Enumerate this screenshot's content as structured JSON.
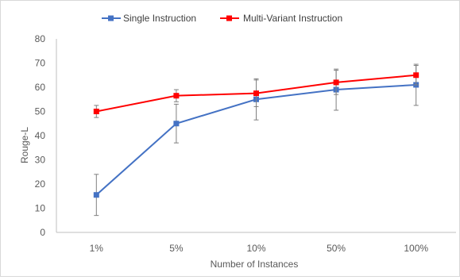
{
  "chart_data": {
    "type": "line",
    "title": "",
    "xlabel": "Number of Instances",
    "ylabel": "Rouge-L",
    "categories": [
      "1%",
      "5%",
      "10%",
      "50%",
      "100%"
    ],
    "ylim": [
      0,
      80
    ],
    "yticks": [
      0,
      10,
      20,
      30,
      40,
      50,
      60,
      70,
      80
    ],
    "grid": false,
    "legend_position": "top",
    "series": [
      {
        "name": "Single Instruction",
        "color": "#4472c4",
        "values": [
          15.5,
          45,
          55,
          59,
          61
        ],
        "error": [
          8.5,
          8,
          8.5,
          8.5,
          8.5
        ]
      },
      {
        "name": "Multi-Variant Instruction",
        "color": "#ff0000",
        "values": [
          50,
          56.5,
          57.5,
          62,
          65
        ],
        "error": [
          2.5,
          2.5,
          5.5,
          5,
          4
        ]
      }
    ]
  }
}
